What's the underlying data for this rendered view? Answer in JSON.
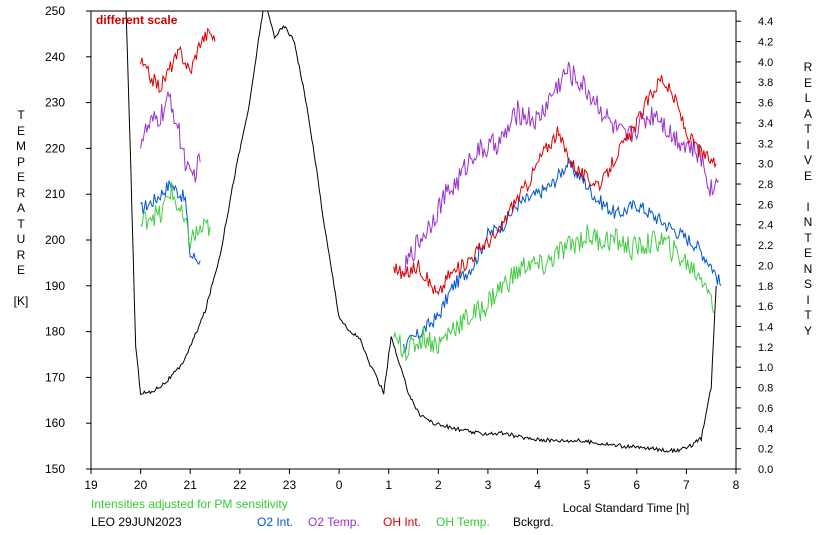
{
  "chart_data": {
    "type": "line",
    "annotation": "different scale",
    "x_axis": {
      "label": "Local Standard Time [h]",
      "ticks": [
        "19",
        "20",
        "21",
        "22",
        "23",
        "0",
        "1",
        "2",
        "3",
        "4",
        "5",
        "6",
        "7",
        "8"
      ]
    },
    "y_left": {
      "label_letters": [
        "T",
        "E",
        "M",
        "P",
        "E",
        "R",
        "A",
        "T",
        "U",
        "R",
        "E",
        "",
        "[K]"
      ],
      "range": [
        150,
        250
      ],
      "ticks": [
        "150",
        "160",
        "170",
        "180",
        "190",
        "200",
        "210",
        "220",
        "230",
        "240",
        "250"
      ]
    },
    "y_right": {
      "label_letters": [
        "R",
        "E",
        "L",
        "A",
        "T",
        "I",
        "V",
        "E",
        "",
        "I",
        "N",
        "T",
        "E",
        "N",
        "S",
        "I",
        "T",
        "Y"
      ],
      "range": [
        0.0,
        4.5
      ],
      "ticks": [
        "0.0",
        "0.2",
        "0.4",
        "0.6",
        "0.8",
        "1.0",
        "1.2",
        "1.4",
        "1.6",
        "1.8",
        "2.0",
        "2.2",
        "2.4",
        "2.6",
        "2.8",
        "3.0",
        "3.2",
        "3.4",
        "3.6",
        "3.8",
        "4.0",
        "4.2",
        "4.4"
      ]
    },
    "note": "Intensities adjusted for PM sensitivity",
    "station": "LEO 29JUN2023",
    "series": [
      {
        "name": "O2 Int.",
        "color": "#0055d4",
        "axis": "right",
        "segments": [
          [
            [
              20.0,
              2.55
            ],
            [
              20.3,
              2.65
            ],
            [
              20.6,
              2.8
            ],
            [
              20.9,
              2.65
            ],
            [
              21.0,
              2.1
            ],
            [
              21.2,
              2.05
            ]
          ],
          [
            [
              25.3,
              1.2
            ],
            [
              25.6,
              1.32
            ],
            [
              26.0,
              1.5
            ],
            [
              26.3,
              1.8
            ],
            [
              26.7,
              2.0
            ],
            [
              27.0,
              2.3
            ],
            [
              27.3,
              2.4
            ],
            [
              27.6,
              2.6
            ],
            [
              28.0,
              2.7
            ],
            [
              28.3,
              2.8
            ],
            [
              28.6,
              3.0
            ],
            [
              28.9,
              2.85
            ],
            [
              29.2,
              2.65
            ],
            [
              29.6,
              2.5
            ],
            [
              30.0,
              2.6
            ],
            [
              30.3,
              2.5
            ],
            [
              30.6,
              2.4
            ],
            [
              30.9,
              2.3
            ],
            [
              31.2,
              2.2
            ],
            [
              31.5,
              2.0
            ],
            [
              31.7,
              1.8
            ]
          ]
        ]
      },
      {
        "name": "O2 Temp.",
        "color": "#9933cc",
        "axis": "left",
        "segments": [
          [
            [
              20.0,
              222
            ],
            [
              20.2,
              225
            ],
            [
              20.4,
              227
            ],
            [
              20.6,
              231
            ],
            [
              20.8,
              222
            ],
            [
              21.0,
              213
            ],
            [
              21.2,
              217
            ]
          ],
          [
            [
              25.3,
              193
            ],
            [
              25.5,
              198
            ],
            [
              25.8,
              203
            ],
            [
              26.1,
              209
            ],
            [
              26.4,
              213
            ],
            [
              26.7,
              219
            ],
            [
              27.0,
              220
            ],
            [
              27.3,
              222
            ],
            [
              27.6,
              228
            ],
            [
              28.0,
              226
            ],
            [
              28.3,
              232
            ],
            [
              28.6,
              237
            ],
            [
              28.9,
              234
            ],
            [
              29.2,
              230
            ],
            [
              29.5,
              225
            ],
            [
              29.8,
              222
            ],
            [
              30.1,
              226
            ],
            [
              30.4,
              228
            ],
            [
              30.7,
              223
            ],
            [
              31.0,
              221
            ],
            [
              31.3,
              218
            ],
            [
              31.5,
              211
            ],
            [
              31.65,
              213
            ]
          ]
        ]
      },
      {
        "name": "OH Int.",
        "color": "#dd0000",
        "axis": "right",
        "segments": [
          [
            [
              20.0,
              4.0
            ],
            [
              20.2,
              3.85
            ],
            [
              20.4,
              3.75
            ],
            [
              20.6,
              3.95
            ],
            [
              20.8,
              4.1
            ],
            [
              21.0,
              3.9
            ],
            [
              21.2,
              4.2
            ],
            [
              21.4,
              4.3
            ],
            [
              21.5,
              4.2
            ]
          ],
          [
            [
              25.1,
              2.0
            ],
            [
              25.3,
              1.9
            ],
            [
              25.6,
              2.0
            ],
            [
              26.0,
              1.7
            ],
            [
              26.2,
              1.9
            ],
            [
              26.5,
              2.0
            ],
            [
              26.9,
              2.2
            ],
            [
              27.2,
              2.3
            ],
            [
              27.5,
              2.6
            ],
            [
              27.8,
              2.8
            ],
            [
              28.1,
              3.1
            ],
            [
              28.4,
              3.3
            ],
            [
              28.7,
              3.0
            ],
            [
              29.0,
              2.85
            ],
            [
              29.3,
              2.8
            ],
            [
              29.6,
              3.1
            ],
            [
              29.9,
              3.3
            ],
            [
              30.2,
              3.6
            ],
            [
              30.5,
              3.85
            ],
            [
              30.8,
              3.6
            ],
            [
              31.0,
              3.3
            ],
            [
              31.3,
              3.1
            ],
            [
              31.6,
              3.0
            ]
          ]
        ]
      },
      {
        "name": "OH Temp.",
        "color": "#44cc44",
        "axis": "left",
        "segments": [
          [
            [
              20.0,
              203
            ],
            [
              20.2,
              206
            ],
            [
              20.4,
              205
            ],
            [
              20.6,
              211
            ],
            [
              20.8,
              206
            ],
            [
              21.0,
              200
            ],
            [
              21.2,
              202
            ],
            [
              21.4,
              203
            ]
          ],
          [
            [
              25.1,
              178
            ],
            [
              25.4,
              176
            ],
            [
              25.7,
              179
            ],
            [
              26.0,
              177
            ],
            [
              26.3,
              181
            ],
            [
              26.6,
              183
            ],
            [
              26.9,
              185
            ],
            [
              27.2,
              189
            ],
            [
              27.5,
              192
            ],
            [
              27.8,
              195
            ],
            [
              28.1,
              194
            ],
            [
              28.4,
              197
            ],
            [
              28.7,
              199
            ],
            [
              29.0,
              201
            ],
            [
              29.3,
              200
            ],
            [
              29.6,
              200
            ],
            [
              29.9,
              198
            ],
            [
              30.2,
              199
            ],
            [
              30.5,
              200
            ],
            [
              30.8,
              197
            ],
            [
              31.1,
              194
            ],
            [
              31.4,
              191
            ],
            [
              31.55,
              184
            ]
          ]
        ]
      },
      {
        "name": "Bckgrd.",
        "color": "#000000",
        "axis": "right",
        "segments": [
          [
            [
              19.7,
              4.6
            ],
            [
              19.8,
              3.0
            ],
            [
              19.9,
              1.2
            ],
            [
              20.0,
              0.75
            ],
            [
              20.2,
              0.75
            ],
            [
              20.5,
              0.85
            ],
            [
              20.8,
              1.0
            ],
            [
              21.0,
              1.2
            ],
            [
              21.3,
              1.55
            ],
            [
              21.6,
              2.1
            ],
            [
              21.9,
              2.9
            ],
            [
              22.2,
              3.6
            ],
            [
              22.4,
              4.3
            ],
            [
              22.5,
              4.6
            ],
            [
              22.7,
              4.25
            ],
            [
              22.9,
              4.35
            ],
            [
              23.1,
              4.2
            ],
            [
              23.3,
              3.7
            ],
            [
              23.5,
              3.1
            ],
            [
              23.7,
              2.4
            ],
            [
              23.9,
              1.8
            ],
            [
              24.0,
              1.5
            ],
            [
              24.2,
              1.35
            ],
            [
              24.4,
              1.3
            ],
            [
              24.6,
              1.05
            ],
            [
              24.8,
              0.85
            ],
            [
              24.9,
              0.75
            ],
            [
              25.05,
              1.3
            ],
            [
              25.2,
              1.05
            ],
            [
              25.4,
              0.75
            ],
            [
              25.6,
              0.55
            ],
            [
              25.9,
              0.45
            ],
            [
              26.3,
              0.4
            ],
            [
              26.8,
              0.35
            ],
            [
              27.3,
              0.35
            ],
            [
              27.8,
              0.3
            ],
            [
              28.3,
              0.28
            ],
            [
              28.8,
              0.28
            ],
            [
              29.3,
              0.25
            ],
            [
              29.8,
              0.22
            ],
            [
              30.3,
              0.2
            ],
            [
              30.7,
              0.18
            ],
            [
              31.0,
              0.2
            ],
            [
              31.3,
              0.3
            ],
            [
              31.5,
              0.8
            ],
            [
              31.6,
              1.8
            ]
          ]
        ]
      }
    ]
  }
}
